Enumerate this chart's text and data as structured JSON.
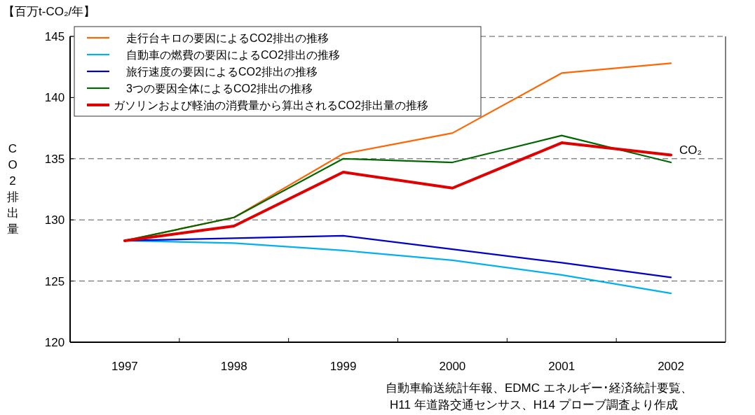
{
  "chart_data": {
    "type": "line",
    "title": "【百万t-CO₂/年】",
    "ylabel": "CO2排出量",
    "categories": [
      "1997",
      "1998",
      "1999",
      "2000",
      "2001",
      "2002"
    ],
    "series": [
      {
        "name": "走行台キロの要因によるCO2排出の推移",
        "color": "#ff6600",
        "values": [
          128.3,
          130.2,
          135.4,
          137.1,
          142.0,
          142.8
        ]
      },
      {
        "name": "自動車の燃費の要因によるCO2排出の推移",
        "color": "#00b0f0",
        "values": [
          128.3,
          128.1,
          127.5,
          126.7,
          125.5,
          124.0
        ]
      },
      {
        "name": "旅行速度の要因によるCO2排出の推移",
        "color": "#0000cc",
        "values": [
          128.3,
          128.5,
          128.7,
          127.6,
          126.5,
          125.3
        ]
      },
      {
        "name": "3つの要因全体によるCO2排出の推移",
        "color": "#006600",
        "values": [
          128.3,
          130.2,
          135.0,
          134.7,
          136.9,
          134.7
        ]
      },
      {
        "name": "ガソリンおよび軽油の消費量から算出されるCO2排出量の推移",
        "color": "#e00000",
        "values": [
          128.3,
          129.5,
          133.9,
          132.6,
          136.3,
          135.3
        ]
      }
    ],
    "ylim": [
      120,
      145
    ],
    "yticks": [
      120,
      125,
      130,
      135,
      140,
      145
    ],
    "grid": "y",
    "legend": "top left",
    "line_style": "solid",
    "annotations": [
      {
        "text": "CO₂",
        "x": "2002",
        "y": 135.3
      },
      "自動車輸送統計年報、EDMC エネルギー･経済統計要覧、\nH11 年道路交通センサス、H14 プローブ調査より作成"
    ]
  }
}
